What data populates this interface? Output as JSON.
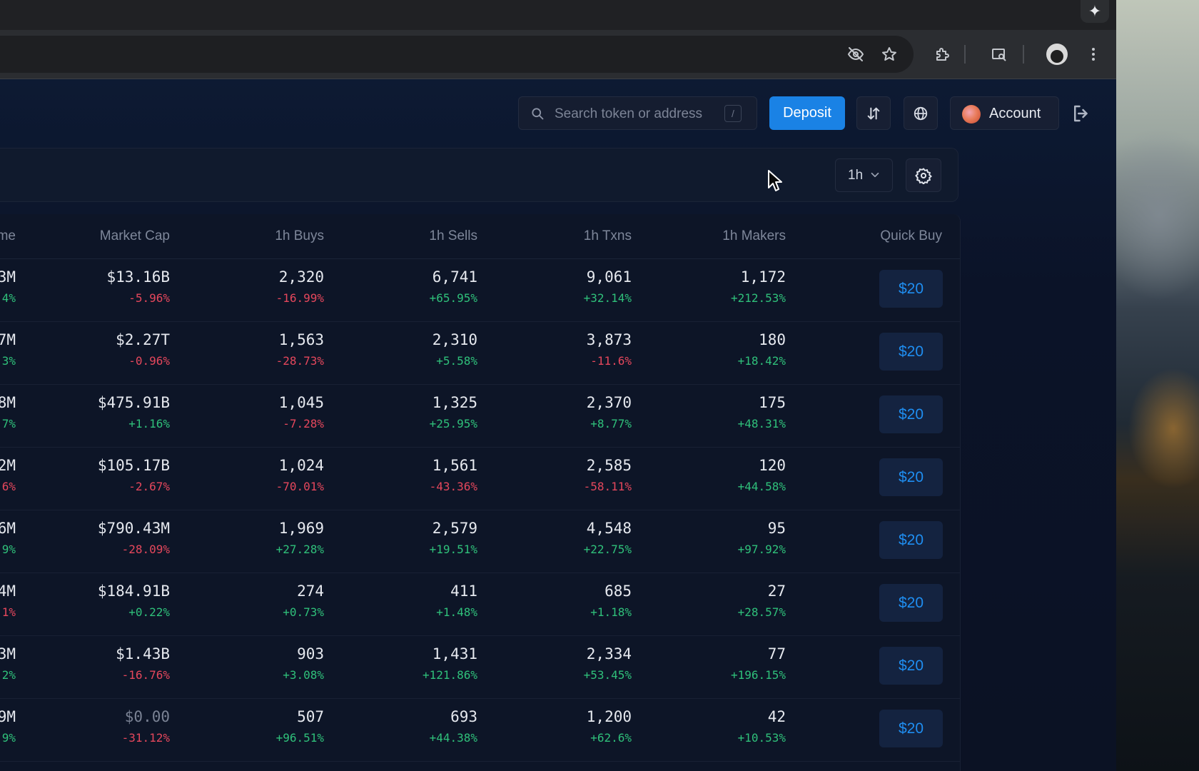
{
  "header": {
    "search_placeholder": "Search token or address",
    "search_shortcut": "/",
    "deposit_label": "Deposit",
    "account_label": "Account"
  },
  "filters": {
    "period": "1h"
  },
  "table": {
    "columns": [
      "me",
      "Market Cap",
      "1h Buys",
      "1h Sells",
      "1h Txns",
      "1h Makers",
      "Quick Buy"
    ],
    "rows": [
      {
        "vol": "3M",
        "vol_chg": "4%",
        "vol_dir": "pos",
        "mcap": "$13.16B",
        "mcap_chg": "-5.96%",
        "mcap_dir": "neg",
        "buys": "2,320",
        "buys_chg": "-16.99%",
        "buys_dir": "neg",
        "sells": "6,741",
        "sells_chg": "+65.95%",
        "sells_dir": "pos",
        "txns": "9,061",
        "txns_chg": "+32.14%",
        "txns_dir": "pos",
        "makers": "1,172",
        "makers_chg": "+212.53%",
        "makers_dir": "pos",
        "quick_buy": "$20"
      },
      {
        "vol": "7M",
        "vol_chg": "3%",
        "vol_dir": "pos",
        "mcap": "$2.27T",
        "mcap_chg": "-0.96%",
        "mcap_dir": "neg",
        "buys": "1,563",
        "buys_chg": "-28.73%",
        "buys_dir": "neg",
        "sells": "2,310",
        "sells_chg": "+5.58%",
        "sells_dir": "pos",
        "txns": "3,873",
        "txns_chg": "-11.6%",
        "txns_dir": "neg",
        "makers": "180",
        "makers_chg": "+18.42%",
        "makers_dir": "pos",
        "quick_buy": "$20"
      },
      {
        "vol": "8M",
        "vol_chg": "7%",
        "vol_dir": "pos",
        "mcap": "$475.91B",
        "mcap_chg": "+1.16%",
        "mcap_dir": "pos",
        "buys": "1,045",
        "buys_chg": "-7.28%",
        "buys_dir": "neg",
        "sells": "1,325",
        "sells_chg": "+25.95%",
        "sells_dir": "pos",
        "txns": "2,370",
        "txns_chg": "+8.77%",
        "txns_dir": "pos",
        "makers": "175",
        "makers_chg": "+48.31%",
        "makers_dir": "pos",
        "quick_buy": "$20"
      },
      {
        "vol": "2M",
        "vol_chg": "6%",
        "vol_dir": "neg",
        "mcap": "$105.17B",
        "mcap_chg": "-2.67%",
        "mcap_dir": "neg",
        "buys": "1,024",
        "buys_chg": "-70.01%",
        "buys_dir": "neg",
        "sells": "1,561",
        "sells_chg": "-43.36%",
        "sells_dir": "neg",
        "txns": "2,585",
        "txns_chg": "-58.11%",
        "txns_dir": "neg",
        "makers": "120",
        "makers_chg": "+44.58%",
        "makers_dir": "pos",
        "quick_buy": "$20"
      },
      {
        "vol": "6M",
        "vol_chg": "9%",
        "vol_dir": "pos",
        "mcap": "$790.43M",
        "mcap_chg": "-28.09%",
        "mcap_dir": "neg",
        "buys": "1,969",
        "buys_chg": "+27.28%",
        "buys_dir": "pos",
        "sells": "2,579",
        "sells_chg": "+19.51%",
        "sells_dir": "pos",
        "txns": "4,548",
        "txns_chg": "+22.75%",
        "txns_dir": "pos",
        "makers": "95",
        "makers_chg": "+97.92%",
        "makers_dir": "pos",
        "quick_buy": "$20"
      },
      {
        "vol": "4M",
        "vol_chg": "1%",
        "vol_dir": "neg",
        "mcap": "$184.91B",
        "mcap_chg": "+0.22%",
        "mcap_dir": "pos",
        "buys": "274",
        "buys_chg": "+0.73%",
        "buys_dir": "pos",
        "sells": "411",
        "sells_chg": "+1.48%",
        "sells_dir": "pos",
        "txns": "685",
        "txns_chg": "+1.18%",
        "txns_dir": "pos",
        "makers": "27",
        "makers_chg": "+28.57%",
        "makers_dir": "pos",
        "quick_buy": "$20"
      },
      {
        "vol": "3M",
        "vol_chg": "2%",
        "vol_dir": "pos",
        "mcap": "$1.43B",
        "mcap_chg": "-16.76%",
        "mcap_dir": "neg",
        "buys": "903",
        "buys_chg": "+3.08%",
        "buys_dir": "pos",
        "sells": "1,431",
        "sells_chg": "+121.86%",
        "sells_dir": "pos",
        "txns": "2,334",
        "txns_chg": "+53.45%",
        "txns_dir": "pos",
        "makers": "77",
        "makers_chg": "+196.15%",
        "makers_dir": "pos",
        "quick_buy": "$20"
      },
      {
        "vol": "9M",
        "vol_chg": "9%",
        "vol_dir": "pos",
        "mcap": "$0.00",
        "mcap_chg": "-31.12%",
        "mcap_dir": "neg",
        "buys": "507",
        "buys_chg": "+96.51%",
        "buys_dir": "pos",
        "sells": "693",
        "sells_chg": "+44.38%",
        "sells_dir": "pos",
        "txns": "1,200",
        "txns_chg": "+62.6%",
        "txns_dir": "pos",
        "makers": "42",
        "makers_chg": "+10.53%",
        "makers_dir": "pos",
        "quick_buy": "$20"
      }
    ]
  },
  "colors": {
    "positive": "#2fc07a",
    "negative": "#e5475c",
    "accent": "#1a82e5"
  }
}
